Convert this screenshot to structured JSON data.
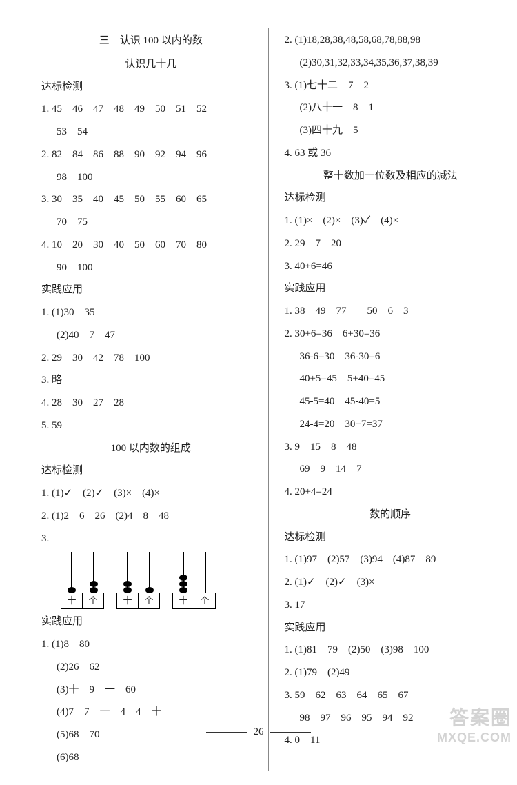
{
  "page_number": "26",
  "watermark_top": "答案圈",
  "watermark_bottom": "MXQE.COM",
  "left": {
    "chapter_title": "三　认识 100 以内的数",
    "sub1": "认识几十几",
    "h_dabiao": "达标检测",
    "q1a": "1. 45　46　47　48　49　50　51　52",
    "q1b": "53　54",
    "q2a": "2. 82　84　86　88　90　92　94　96",
    "q2b": "98　100",
    "q3a": "3. 30　35　40　45　50　55　60　65",
    "q3b": "70　75",
    "q4a": "4. 10　20　30　40　50　60　70　80",
    "q4b": "90　100",
    "h_shijian": "实践应用",
    "p1a": "1. (1)30　35",
    "p1b": "(2)40　7　47",
    "p2": "2. 29　30　42　78　100",
    "p3": "3. 略",
    "p4": "4. 28　30　27　28",
    "p5": "5. 59",
    "sub2": "100 以内数的组成",
    "h_dabiao2": "达标检测",
    "c1": "1. (1)✓　(2)✓　(3)×　(4)×",
    "c2": "2. (1)2　6　26　(2)4　8　48",
    "c3": "3.",
    "abacus": [
      {
        "tens": 1,
        "ones": 2
      },
      {
        "tens": 2,
        "ones": 1
      },
      {
        "tens": 3,
        "ones": 0
      }
    ],
    "base_labels": [
      "十",
      "个"
    ],
    "h_shijian2": "实践应用",
    "d1a": "1. (1)8　80",
    "d1b": "(2)26　62",
    "d1c": "(3)十　9　一　60",
    "d1d": "(4)7　7　一　4　4　十",
    "d1e": "(5)68　70",
    "d1f": "(6)68"
  },
  "right": {
    "r2a": "2. (1)18,28,38,48,58,68,78,88,98",
    "r2b": "(2)30,31,32,33,34,35,36,37,38,39",
    "r3a": "3. (1)七十二　7　2",
    "r3b": "(2)八十一　8　1",
    "r3c": "(3)四十九　5",
    "r4": "4. 63 或 36",
    "sub3": "整十数加一位数及相应的减法",
    "h_dabiao3": "达标检测",
    "s1": "1. (1)×　(2)×　(3)✓　(4)×",
    "s2": "2. 29　7　20",
    "s3": "3. 40+6=46",
    "h_shijian3": "实践应用",
    "t1": "1. 38　49　77　　50　6　3",
    "t2a": "2. 30+6=36　6+30=36",
    "t2b": "36-6=30　36-30=6",
    "t2c": "40+5=45　5+40=45",
    "t2d": "45-5=40　45-40=5",
    "t2e": "24-4=20　30+7=37",
    "t3a": "3. 9　15　8　48",
    "t3b": "69　9　14　7",
    "t4": "4. 20+4=24",
    "sub4": "数的顺序",
    "h_dabiao4": "达标检测",
    "u1": "1. (1)97　(2)57　(3)94　(4)87　89",
    "u2": "2. (1)✓　(2)✓　(3)×",
    "u3": "3. 17",
    "h_shijian4": "实践应用",
    "v1": "1. (1)81　79　(2)50　(3)98　100",
    "v2": "2. (1)79　(2)49",
    "v3a": "3. 59　62　63　64　65　67",
    "v3b": "98　97　96　95　94　92",
    "v4": "4. 0　11"
  }
}
